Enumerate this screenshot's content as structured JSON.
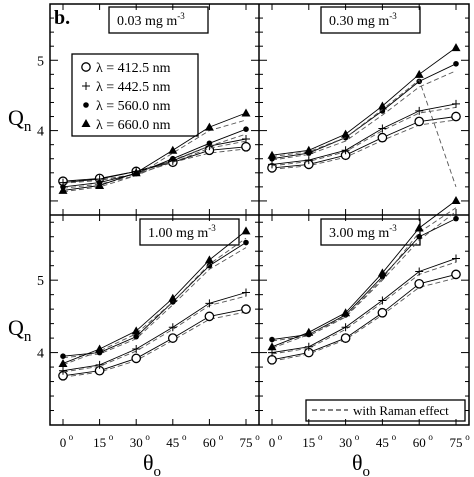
{
  "figure": {
    "panel_letter": "b.",
    "ylabel_main": "Q",
    "ylabel_sub": "n",
    "xlabel_main": "θ",
    "xlabel_sub": "o"
  },
  "chart_data": [
    {
      "type": "line",
      "panel": "top-left",
      "label": "0.03 mg m",
      "label_sup": "-3",
      "x": [
        0,
        15,
        30,
        45,
        60,
        75
      ],
      "xticklabels": [
        "0",
        "15",
        "30",
        "45",
        "60",
        "75"
      ],
      "ylim": [
        2.8,
        5.8
      ],
      "yticks": [
        4,
        5
      ],
      "series": [
        {
          "name": "λ = 412.5 nm",
          "marker": "open-circle",
          "values": [
            3.28,
            3.32,
            3.42,
            3.55,
            3.72,
            3.77
          ],
          "raman": [
            3.28,
            3.3,
            3.38,
            3.55,
            3.68,
            3.74
          ]
        },
        {
          "name": "λ = 442.5 nm",
          "marker": "plus",
          "values": [
            3.26,
            3.31,
            3.42,
            3.57,
            3.78,
            3.88
          ],
          "raman": [
            3.25,
            3.29,
            3.38,
            3.55,
            3.75,
            3.85
          ]
        },
        {
          "name": "λ = 560.0 nm",
          "marker": "filled-circle",
          "values": [
            3.2,
            3.26,
            3.39,
            3.6,
            3.82,
            4.02
          ],
          "raman": [
            3.18,
            3.24,
            3.36,
            3.58,
            3.78,
            3.95
          ]
        },
        {
          "name": "λ = 660.0 nm",
          "marker": "filled-triangle",
          "values": [
            3.15,
            3.22,
            3.4,
            3.72,
            4.05,
            4.25
          ],
          "raman": [
            3.13,
            3.2,
            3.36,
            3.68,
            4.0,
            4.15
          ]
        }
      ],
      "legend": "top-left"
    },
    {
      "type": "line",
      "panel": "top-right",
      "label": "0.30 mg m",
      "label_sup": "-3",
      "x": [
        0,
        15,
        30,
        45,
        60,
        75
      ],
      "xticklabels": [
        "0",
        "15",
        "30",
        "45",
        "60",
        "75"
      ],
      "ylim": [
        2.8,
        5.8
      ],
      "yticks": [
        4,
        5
      ],
      "series": [
        {
          "name": "λ = 412.5 nm",
          "marker": "open-circle",
          "values": [
            3.47,
            3.52,
            3.65,
            3.9,
            4.13,
            4.2
          ],
          "raman": [
            3.45,
            3.5,
            3.62,
            3.86,
            4.08,
            4.15
          ]
        },
        {
          "name": "λ = 442.5 nm",
          "marker": "plus",
          "values": [
            3.52,
            3.58,
            3.72,
            4.03,
            4.28,
            4.38
          ],
          "raman": [
            3.5,
            3.56,
            3.7,
            4.0,
            4.25,
            4.33
          ]
        },
        {
          "name": "λ = 560.0 nm",
          "marker": "filled-circle",
          "values": [
            3.6,
            3.68,
            3.9,
            4.28,
            4.7,
            4.95
          ],
          "raman": [
            3.58,
            3.66,
            3.85,
            4.22,
            4.62,
            4.85
          ]
        },
        {
          "name": "λ = 660.0 nm",
          "marker": "filled-triangle",
          "values": [
            3.65,
            3.72,
            3.95,
            4.35,
            4.8,
            5.18
          ],
          "raman": [
            3.63,
            3.7,
            3.9,
            4.3,
            4.72,
            3.2
          ]
        }
      ]
    },
    {
      "type": "line",
      "panel": "bottom-left",
      "label": "1.00 mg m",
      "label_sup": "-3",
      "x": [
        0,
        15,
        30,
        45,
        60,
        75
      ],
      "xticklabels": [
        "0",
        "15",
        "30",
        "45",
        "60",
        "75"
      ],
      "ylim": [
        3.0,
        5.9
      ],
      "yticks": [
        4,
        5
      ],
      "series": [
        {
          "name": "λ = 412.5 nm",
          "marker": "open-circle",
          "values": [
            3.68,
            3.75,
            3.92,
            4.2,
            4.5,
            4.6
          ],
          "raman": [
            3.66,
            3.73,
            3.89,
            4.17,
            4.46,
            4.56
          ]
        },
        {
          "name": "λ = 442.5 nm",
          "marker": "plus",
          "values": [
            3.75,
            3.83,
            4.05,
            4.35,
            4.68,
            4.83
          ],
          "raman": [
            3.73,
            3.81,
            4.02,
            4.32,
            4.65,
            4.78
          ]
        },
        {
          "name": "λ = 560.0 nm",
          "marker": "filled-circle",
          "values": [
            3.95,
            4.0,
            4.22,
            4.7,
            5.2,
            5.52
          ],
          "raman": [
            3.93,
            3.98,
            4.19,
            4.66,
            5.15,
            5.45
          ]
        },
        {
          "name": "λ = 660.0 nm",
          "marker": "filled-triangle",
          "values": [
            3.85,
            4.05,
            4.3,
            4.75,
            5.28,
            5.68
          ],
          "raman": [
            3.83,
            4.02,
            4.26,
            4.7,
            5.22,
            5.58
          ]
        }
      ]
    },
    {
      "type": "line",
      "panel": "bottom-right",
      "label": "3.00 mg m",
      "label_sup": "-3",
      "x": [
        0,
        15,
        30,
        45,
        60,
        75
      ],
      "xticklabels": [
        "0",
        "15",
        "30",
        "45",
        "60",
        "75"
      ],
      "ylim": [
        3.0,
        5.9
      ],
      "yticks": [
        4,
        5
      ],
      "series": [
        {
          "name": "λ = 412.5 nm",
          "marker": "open-circle",
          "values": [
            3.9,
            4.0,
            4.2,
            4.55,
            4.95,
            5.08
          ],
          "raman": [
            3.88,
            3.98,
            4.18,
            4.52,
            4.9,
            5.03
          ]
        },
        {
          "name": "λ = 442.5 nm",
          "marker": "plus",
          "values": [
            4.0,
            4.08,
            4.35,
            4.72,
            5.12,
            5.3
          ],
          "raman": [
            3.98,
            4.06,
            4.32,
            4.69,
            5.08,
            5.25
          ]
        },
        {
          "name": "λ = 560.0 nm",
          "marker": "filled-circle",
          "values": [
            4.18,
            4.25,
            4.52,
            5.05,
            5.6,
            5.85
          ],
          "raman": [
            4.16,
            4.23,
            4.49,
            5.0,
            5.55,
            5.95
          ]
        },
        {
          "name": "λ = 660.0 nm",
          "marker": "filled-triangle",
          "values": [
            4.08,
            4.28,
            4.55,
            5.1,
            5.72,
            6.1
          ],
          "raman": [
            4.06,
            4.25,
            4.5,
            5.02,
            5.66,
            6.0
          ]
        }
      ],
      "legend_note": "with Raman effect"
    }
  ]
}
